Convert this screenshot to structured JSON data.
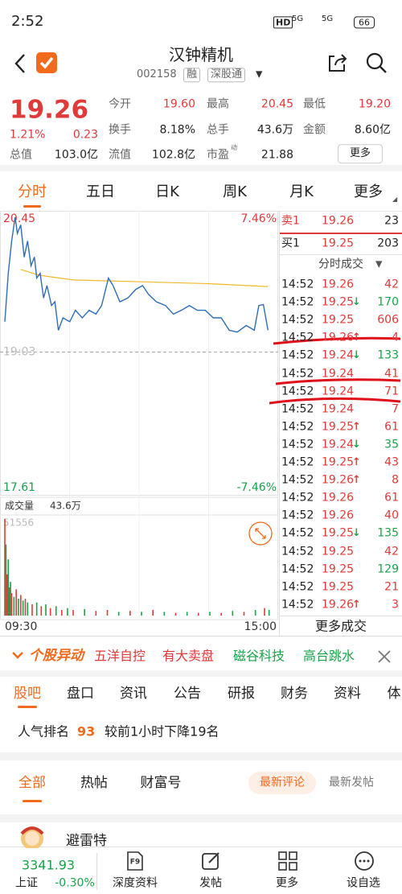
{
  "status_bar": {
    "time": "2:52",
    "network": "HD",
    "signal_1": "5G",
    "signal_2": "5G",
    "battery": "66"
  },
  "header": {
    "title": "汉钟精机",
    "code": "002158",
    "tags": [
      "融",
      "深股通"
    ]
  },
  "quote": {
    "price": "19.26",
    "change_pct": "1.21%",
    "change": "0.23",
    "stats": [
      [
        {
          "label": "今开",
          "value": "19.60"
        },
        {
          "label": "最高",
          "value": "20.45"
        },
        {
          "label": "最低",
          "value": "19.20"
        }
      ],
      [
        {
          "label": "换手",
          "value": "8.18%"
        },
        {
          "label": "总手",
          "value": "43.6万"
        },
        {
          "label": "金额",
          "value": "8.60亿"
        }
      ],
      [
        {
          "label": "总值",
          "value": "103.0亿"
        },
        {
          "label": "流值",
          "value": "102.8亿"
        },
        {
          "label": "市盈",
          "value": "21.88"
        }
      ]
    ],
    "pe_note": "动",
    "more": "更多"
  },
  "tabs": [
    "分时",
    "五日",
    "日K",
    "周K",
    "月K",
    "更多"
  ],
  "intraday": {
    "type": "line",
    "ylim": [
      17.61,
      20.45
    ],
    "pct_labels": [
      "7.46%",
      "-7.46%"
    ],
    "prev_close": {
      "value": 19.03,
      "label": "19:03"
    },
    "xlim": [
      0,
      240
    ],
    "x_labels": [
      "09:30",
      "15:00"
    ],
    "price": {
      "color": "#2f6db5",
      "x": [
        0,
        3,
        6,
        9,
        11,
        14,
        17,
        20,
        23,
        26,
        28,
        31,
        34,
        37,
        41,
        44,
        47,
        51,
        57,
        62,
        68,
        74,
        80,
        85,
        91,
        95,
        101,
        108,
        115,
        121,
        126,
        133,
        141,
        148,
        155,
        162,
        169,
        176,
        183,
        190,
        197,
        204,
        212,
        219,
        223,
        227,
        231
      ],
      "values": [
        19.35,
        19.86,
        20.2,
        20.45,
        20.28,
        20.37,
        20.03,
        20.2,
        19.94,
        20.03,
        19.81,
        19.86,
        19.6,
        19.73,
        19.52,
        19.56,
        19.26,
        19.39,
        19.35,
        19.47,
        19.39,
        19.47,
        19.43,
        19.52,
        19.81,
        19.73,
        19.56,
        19.6,
        19.69,
        19.73,
        19.64,
        19.56,
        19.52,
        19.43,
        19.47,
        19.52,
        19.47,
        19.47,
        19.39,
        19.39,
        19.26,
        19.24,
        19.31,
        19.26,
        19.52,
        19.53,
        19.26
      ]
    },
    "avg": {
      "color": "#f0b92a",
      "x": [
        14,
        30,
        60,
        120,
        180,
        231
      ],
      "values": [
        19.9,
        19.84,
        19.79,
        19.77,
        19.75,
        19.72
      ]
    },
    "volume_label": "成交量",
    "volume_total": "43.6万",
    "volume_ylim": [
      0,
      51556
    ],
    "volume": {
      "x": [
        0,
        1,
        2,
        3,
        4,
        5,
        6,
        8,
        10,
        12,
        14,
        16,
        18,
        20,
        24,
        28,
        32,
        36,
        40,
        45,
        50,
        55,
        60,
        70,
        80,
        90,
        100,
        110,
        120,
        130,
        140,
        150,
        160,
        170,
        180,
        190,
        200,
        210,
        220,
        228,
        232
      ],
      "values": [
        51556,
        38000,
        22000,
        30000,
        15000,
        18000,
        12000,
        10000,
        14000,
        9000,
        11000,
        8000,
        9000,
        7000,
        6000,
        7000,
        5000,
        6000,
        4000,
        5000,
        3000,
        4000,
        3000,
        3500,
        2500,
        3000,
        2000,
        2500,
        2000,
        3000,
        2000,
        1500,
        2000,
        1500,
        2000,
        1500,
        2500,
        2000,
        3000,
        4000,
        3000
      ],
      "colors": [
        "#e03a3a",
        "#1aa34a",
        "#e03a3a",
        "#1aa34a",
        "#e03a3a",
        "#1aa34a",
        "#e03a3a",
        "#1aa34a",
        "#e03a3a",
        "#1aa34a",
        "#e03a3a",
        "#1aa34a",
        "#e03a3a",
        "#1aa34a",
        "#e03a3a",
        "#1aa34a",
        "#e03a3a",
        "#1aa34a",
        "#e03a3a",
        "#1aa34a",
        "#e03a3a",
        "#1aa34a",
        "#e03a3a",
        "#1aa34a",
        "#e03a3a",
        "#e03a3a",
        "#1aa34a",
        "#e03a3a",
        "#1aa34a",
        "#e03a3a",
        "#1aa34a",
        "#e03a3a",
        "#1aa34a",
        "#e03a3a",
        "#1aa34a",
        "#e03a3a",
        "#1aa34a",
        "#e03a3a",
        "#1aa34a",
        "#e03a3a",
        "#1aa34a"
      ]
    }
  },
  "order_book": {
    "sell": {
      "label": "卖1",
      "price": "19.26",
      "qty": "23"
    },
    "buy": {
      "label": "买1",
      "price": "19.25",
      "qty": "203"
    },
    "trades_title": "分时成交",
    "more_trades": "更多成交",
    "trades": [
      {
        "time": "14:52",
        "price": "19.26",
        "qty": "42",
        "qty_color": "#e03a3a"
      },
      {
        "time": "14:52",
        "price": "19.25",
        "dir": "↓",
        "qty": "170",
        "qty_color": "#1aa34a"
      },
      {
        "time": "14:52",
        "price": "19.25",
        "qty": "606",
        "qty_color": "#e03a3a"
      },
      {
        "time": "14:52",
        "price": "19.26",
        "dir": "↑",
        "qty": "4",
        "qty_color": "#e03a3a"
      },
      {
        "time": "14:52",
        "price": "19.24",
        "dir": "↓",
        "qty": "133",
        "qty_color": "#1aa34a"
      },
      {
        "time": "14:52",
        "price": "19.24",
        "qty": "41",
        "qty_color": "#e03a3a"
      },
      {
        "time": "14:52",
        "price": "19.24",
        "qty": "71",
        "qty_color": "#e03a3a"
      },
      {
        "time": "14:52",
        "price": "19.24",
        "qty": "7",
        "qty_color": "#e03a3a"
      },
      {
        "time": "14:52",
        "price": "19.25",
        "dir": "↑",
        "qty": "61",
        "qty_color": "#e03a3a"
      },
      {
        "time": "14:52",
        "price": "19.24",
        "dir": "↓",
        "qty": "35",
        "qty_color": "#1aa34a"
      },
      {
        "time": "14:52",
        "price": "19.25",
        "dir": "↑",
        "qty": "43",
        "qty_color": "#e03a3a"
      },
      {
        "time": "14:52",
        "price": "19.26",
        "dir": "↑",
        "qty": "8",
        "qty_color": "#e03a3a"
      },
      {
        "time": "14:52",
        "price": "19.26",
        "qty": "61",
        "qty_color": "#e03a3a"
      },
      {
        "time": "14:52",
        "price": "19.26",
        "qty": "40",
        "qty_color": "#e03a3a"
      },
      {
        "time": "14:52",
        "price": "19.25",
        "dir": "↓",
        "qty": "135",
        "qty_color": "#1aa34a"
      },
      {
        "time": "14:52",
        "price": "19.25",
        "qty": "42",
        "qty_color": "#e03a3a"
      },
      {
        "time": "14:52",
        "price": "19.25",
        "qty": "129",
        "qty_color": "#1aa34a"
      },
      {
        "time": "14:52",
        "price": "19.25",
        "qty": "21",
        "qty_color": "#e03a3a"
      },
      {
        "time": "14:52",
        "price": "19.26",
        "dir": "↑",
        "qty": "3",
        "qty_color": "#e03a3a"
      }
    ]
  },
  "alerts": {
    "title": "个股异动",
    "items": [
      "五洋自控",
      "有大卖盘",
      "磁谷科技",
      "高台跳水"
    ]
  },
  "section_tabs": [
    "股吧",
    "盘口",
    "资讯",
    "公告",
    "研报",
    "财务",
    "资料",
    "体"
  ],
  "popularity": {
    "label": "人气排名",
    "rank": "93",
    "change": "较前1小时下降19名"
  },
  "feed_tabs": [
    "全部",
    "热帖",
    "财富号"
  ],
  "sort_options": [
    "最新评论",
    "最新发帖"
  ],
  "post": {
    "author": "避雷特"
  },
  "bottom_bar": {
    "index_value": "3341.93",
    "index_name": "上证",
    "index_change": "-0.30%",
    "buttons": [
      {
        "icon": "F9",
        "label": "深度资料"
      },
      {
        "label": "发帖"
      },
      {
        "label": "更多"
      },
      {
        "label": "设自选"
      }
    ]
  }
}
